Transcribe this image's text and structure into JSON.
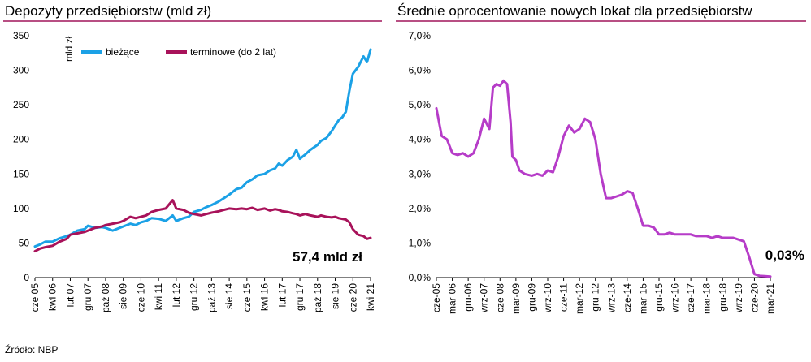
{
  "colors": {
    "title_rule": "#a0155a",
    "current": "#1ba1e6",
    "term": "#a8125a",
    "rate": "#b63cc8",
    "axis": "#000000"
  },
  "source": "Źródło: NBP",
  "chart_data": [
    {
      "type": "line",
      "title": "Depozyty przedsiębiorstw (mld zł)",
      "ylabel": "mld zł",
      "xlabel": "",
      "ylim": [
        0,
        350
      ],
      "yticks": [
        0,
        50,
        100,
        150,
        200,
        250,
        300,
        350
      ],
      "xlim": [
        "2005-06",
        "2021-04"
      ],
      "xticks": [
        {
          "label": "cze 05",
          "date": "2005-06"
        },
        {
          "label": "kwi 06",
          "date": "2006-04"
        },
        {
          "label": "lut 07",
          "date": "2007-02"
        },
        {
          "label": "gru 07",
          "date": "2007-12"
        },
        {
          "label": "paź 08",
          "date": "2008-10"
        },
        {
          "label": "sie 09",
          "date": "2009-08"
        },
        {
          "label": "cze 10",
          "date": "2010-06"
        },
        {
          "label": "kwi 11",
          "date": "2011-04"
        },
        {
          "label": "lut 12",
          "date": "2012-02"
        },
        {
          "label": "gru 12",
          "date": "2012-12"
        },
        {
          "label": "paź 13",
          "date": "2013-10"
        },
        {
          "label": "sie 14",
          "date": "2014-08"
        },
        {
          "label": "cze 15",
          "date": "2015-06"
        },
        {
          "label": "kwi 16",
          "date": "2016-04"
        },
        {
          "label": "lut 17",
          "date": "2017-02"
        },
        {
          "label": "gru 17",
          "date": "2017-12"
        },
        {
          "label": "paź 18",
          "date": "2018-10"
        },
        {
          "label": "sie 19",
          "date": "2019-08"
        },
        {
          "label": "cze 20",
          "date": "2020-06"
        },
        {
          "label": "kwi 21",
          "date": "2021-04"
        }
      ],
      "legend": "top-left",
      "grid": false,
      "annotation": "57,4 mld zł",
      "series": [
        {
          "name": "bieżące",
          "points": [
            [
              "2005-06",
              45
            ],
            [
              "2005-09",
              48
            ],
            [
              "2005-12",
              52
            ],
            [
              "2006-04",
              52
            ],
            [
              "2006-08",
              57
            ],
            [
              "2006-12",
              60
            ],
            [
              "2007-02",
              62
            ],
            [
              "2007-06",
              68
            ],
            [
              "2007-10",
              70
            ],
            [
              "2007-12",
              75
            ],
            [
              "2008-04",
              72
            ],
            [
              "2008-08",
              73
            ],
            [
              "2008-10",
              72
            ],
            [
              "2009-02",
              68
            ],
            [
              "2009-06",
              72
            ],
            [
              "2009-08",
              74
            ],
            [
              "2009-12",
              78
            ],
            [
              "2010-03",
              76
            ],
            [
              "2010-06",
              80
            ],
            [
              "2010-09",
              82
            ],
            [
              "2010-12",
              86
            ],
            [
              "2011-04",
              85
            ],
            [
              "2011-08",
              82
            ],
            [
              "2011-12",
              90
            ],
            [
              "2012-02",
              82
            ],
            [
              "2012-06",
              86
            ],
            [
              "2012-09",
              88
            ],
            [
              "2012-12",
              95
            ],
            [
              "2013-04",
              98
            ],
            [
              "2013-07",
              102
            ],
            [
              "2013-10",
              105
            ],
            [
              "2014-02",
              110
            ],
            [
              "2014-05",
              115
            ],
            [
              "2014-08",
              120
            ],
            [
              "2014-12",
              128
            ],
            [
              "2015-03",
              130
            ],
            [
              "2015-06",
              138
            ],
            [
              "2015-09",
              142
            ],
            [
              "2015-12",
              148
            ],
            [
              "2016-04",
              150
            ],
            [
              "2016-07",
              155
            ],
            [
              "2016-10",
              158
            ],
            [
              "2016-12",
              165
            ],
            [
              "2017-02",
              162
            ],
            [
              "2017-05",
              170
            ],
            [
              "2017-08",
              175
            ],
            [
              "2017-10",
              185
            ],
            [
              "2017-12",
              172
            ],
            [
              "2018-03",
              178
            ],
            [
              "2018-06",
              185
            ],
            [
              "2018-10",
              192
            ],
            [
              "2018-12",
              198
            ],
            [
              "2019-03",
              202
            ],
            [
              "2019-06",
              212
            ],
            [
              "2019-08",
              220
            ],
            [
              "2019-10",
              228
            ],
            [
              "2019-12",
              232
            ],
            [
              "2020-02",
              240
            ],
            [
              "2020-04",
              270
            ],
            [
              "2020-06",
              295
            ],
            [
              "2020-09",
              305
            ],
            [
              "2020-12",
              320
            ],
            [
              "2021-02",
              312
            ],
            [
              "2021-04",
              330
            ]
          ]
        },
        {
          "name": "terminowe (do 2 lat)",
          "points": [
            [
              "2005-06",
              38
            ],
            [
              "2005-09",
              42
            ],
            [
              "2005-12",
              44
            ],
            [
              "2006-04",
              46
            ],
            [
              "2006-08",
              52
            ],
            [
              "2006-12",
              56
            ],
            [
              "2007-02",
              62
            ],
            [
              "2007-06",
              64
            ],
            [
              "2007-10",
              66
            ],
            [
              "2007-12",
              68
            ],
            [
              "2008-04",
              72
            ],
            [
              "2008-08",
              74
            ],
            [
              "2008-10",
              76
            ],
            [
              "2009-02",
              78
            ],
            [
              "2009-06",
              80
            ],
            [
              "2009-08",
              82
            ],
            [
              "2009-12",
              88
            ],
            [
              "2010-03",
              86
            ],
            [
              "2010-06",
              88
            ],
            [
              "2010-09",
              90
            ],
            [
              "2010-12",
              95
            ],
            [
              "2011-04",
              98
            ],
            [
              "2011-08",
              100
            ],
            [
              "2011-12",
              112
            ],
            [
              "2012-02",
              100
            ],
            [
              "2012-06",
              98
            ],
            [
              "2012-09",
              94
            ],
            [
              "2012-12",
              92
            ],
            [
              "2013-04",
              90
            ],
            [
              "2013-07",
              92
            ],
            [
              "2013-10",
              94
            ],
            [
              "2014-02",
              96
            ],
            [
              "2014-05",
              98
            ],
            [
              "2014-08",
              100
            ],
            [
              "2014-12",
              99
            ],
            [
              "2015-03",
              100
            ],
            [
              "2015-06",
              99
            ],
            [
              "2015-09",
              101
            ],
            [
              "2015-12",
              98
            ],
            [
              "2016-04",
              100
            ],
            [
              "2016-07",
              97
            ],
            [
              "2016-10",
              99
            ],
            [
              "2016-12",
              98
            ],
            [
              "2017-02",
              96
            ],
            [
              "2017-05",
              95
            ],
            [
              "2017-08",
              93
            ],
            [
              "2017-10",
              92
            ],
            [
              "2017-12",
              90
            ],
            [
              "2018-03",
              92
            ],
            [
              "2018-06",
              90
            ],
            [
              "2018-10",
              88
            ],
            [
              "2018-12",
              90
            ],
            [
              "2019-03",
              88
            ],
            [
              "2019-06",
              87
            ],
            [
              "2019-08",
              88
            ],
            [
              "2019-10",
              86
            ],
            [
              "2019-12",
              85
            ],
            [
              "2020-02",
              84
            ],
            [
              "2020-04",
              80
            ],
            [
              "2020-06",
              70
            ],
            [
              "2020-09",
              62
            ],
            [
              "2020-12",
              60
            ],
            [
              "2021-02",
              56
            ],
            [
              "2021-04",
              57.4
            ]
          ]
        }
      ]
    },
    {
      "type": "line",
      "title": "Średnie oprocentowanie nowych lokat dla przedsiębiorstw",
      "xlabel": "",
      "ylabel": "",
      "ylim": [
        0,
        7
      ],
      "yticks": [
        "0,0%",
        "1,0%",
        "2,0%",
        "3,0%",
        "4,0%",
        "5,0%",
        "6,0%",
        "7,0%"
      ],
      "xlim": [
        "2005-06",
        "2021-03"
      ],
      "xticks": [
        {
          "label": "cze-05",
          "date": "2005-06"
        },
        {
          "label": "mar-06",
          "date": "2006-03"
        },
        {
          "label": "gru-06",
          "date": "2006-12"
        },
        {
          "label": "wrz-07",
          "date": "2007-09"
        },
        {
          "label": "cze-08",
          "date": "2008-06"
        },
        {
          "label": "mar-09",
          "date": "2009-03"
        },
        {
          "label": "gru-09",
          "date": "2009-12"
        },
        {
          "label": "wrz-10",
          "date": "2010-09"
        },
        {
          "label": "cze-11",
          "date": "2011-06"
        },
        {
          "label": "mar-12",
          "date": "2012-03"
        },
        {
          "label": "gru-12",
          "date": "2012-12"
        },
        {
          "label": "wrz-13",
          "date": "2013-09"
        },
        {
          "label": "cze-14",
          "date": "2014-06"
        },
        {
          "label": "mar-15",
          "date": "2015-03"
        },
        {
          "label": "gru-15",
          "date": "2015-12"
        },
        {
          "label": "wrz-16",
          "date": "2016-09"
        },
        {
          "label": "cze-17",
          "date": "2017-06"
        },
        {
          "label": "mar-18",
          "date": "2018-03"
        },
        {
          "label": "gru-18",
          "date": "2018-12"
        },
        {
          "label": "wrz-19",
          "date": "2019-09"
        },
        {
          "label": "cze-20",
          "date": "2020-06"
        },
        {
          "label": "mar-21",
          "date": "2021-03"
        }
      ],
      "grid": false,
      "annotation": "0,03%",
      "series": [
        {
          "name": "",
          "points": [
            [
              "2005-06",
              4.9
            ],
            [
              "2005-09",
              4.1
            ],
            [
              "2005-12",
              4.0
            ],
            [
              "2006-03",
              3.6
            ],
            [
              "2006-06",
              3.55
            ],
            [
              "2006-09",
              3.6
            ],
            [
              "2006-12",
              3.5
            ],
            [
              "2007-03",
              3.6
            ],
            [
              "2007-06",
              4.0
            ],
            [
              "2007-09",
              4.6
            ],
            [
              "2007-12",
              4.3
            ],
            [
              "2008-02",
              5.5
            ],
            [
              "2008-04",
              5.6
            ],
            [
              "2008-06",
              5.55
            ],
            [
              "2008-08",
              5.7
            ],
            [
              "2008-10",
              5.6
            ],
            [
              "2008-12",
              4.5
            ],
            [
              "2009-01",
              3.5
            ],
            [
              "2009-03",
              3.4
            ],
            [
              "2009-05",
              3.1
            ],
            [
              "2009-08",
              3.0
            ],
            [
              "2009-12",
              2.95
            ],
            [
              "2010-03",
              3.0
            ],
            [
              "2010-06",
              2.95
            ],
            [
              "2010-09",
              3.1
            ],
            [
              "2010-12",
              3.05
            ],
            [
              "2011-03",
              3.5
            ],
            [
              "2011-06",
              4.1
            ],
            [
              "2011-09",
              4.4
            ],
            [
              "2011-12",
              4.2
            ],
            [
              "2012-03",
              4.3
            ],
            [
              "2012-06",
              4.6
            ],
            [
              "2012-09",
              4.5
            ],
            [
              "2012-12",
              4.0
            ],
            [
              "2013-03",
              3.0
            ],
            [
              "2013-06",
              2.3
            ],
            [
              "2013-09",
              2.3
            ],
            [
              "2013-12",
              2.35
            ],
            [
              "2014-03",
              2.4
            ],
            [
              "2014-06",
              2.5
            ],
            [
              "2014-09",
              2.45
            ],
            [
              "2014-12",
              2.0
            ],
            [
              "2015-03",
              1.5
            ],
            [
              "2015-06",
              1.5
            ],
            [
              "2015-09",
              1.45
            ],
            [
              "2015-12",
              1.25
            ],
            [
              "2016-03",
              1.25
            ],
            [
              "2016-06",
              1.3
            ],
            [
              "2016-09",
              1.25
            ],
            [
              "2016-12",
              1.25
            ],
            [
              "2017-03",
              1.25
            ],
            [
              "2017-06",
              1.25
            ],
            [
              "2017-09",
              1.2
            ],
            [
              "2017-12",
              1.2
            ],
            [
              "2018-03",
              1.2
            ],
            [
              "2018-06",
              1.15
            ],
            [
              "2018-09",
              1.2
            ],
            [
              "2018-12",
              1.15
            ],
            [
              "2019-03",
              1.15
            ],
            [
              "2019-06",
              1.15
            ],
            [
              "2019-09",
              1.1
            ],
            [
              "2019-12",
              1.05
            ],
            [
              "2020-03",
              0.6
            ],
            [
              "2020-06",
              0.1
            ],
            [
              "2020-09",
              0.05
            ],
            [
              "2020-12",
              0.04
            ],
            [
              "2021-03",
              0.03
            ]
          ]
        }
      ]
    }
  ]
}
